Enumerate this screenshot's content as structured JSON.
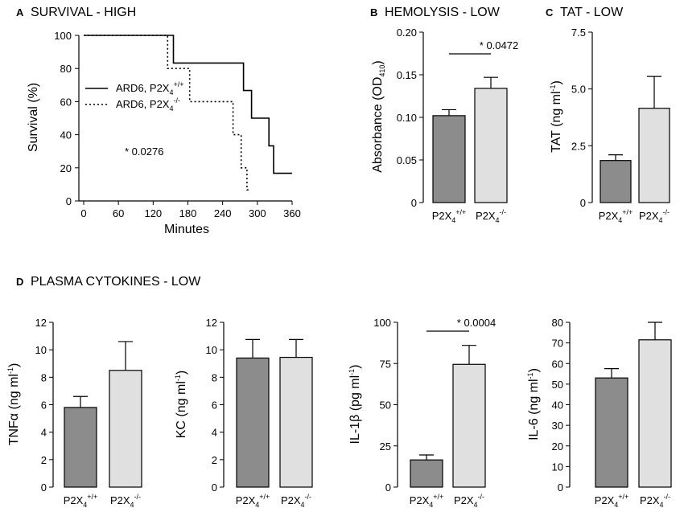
{
  "colors": {
    "wild_type": "#8c8c8c",
    "knockout": "#e0e0e0",
    "ink": "#000000"
  },
  "chart_data": [
    {
      "id": "A",
      "type": "line",
      "panel_letter": "A",
      "title": "SURVIVAL - HIGH",
      "xlabel": "Minutes",
      "ylabel": "Survival (%)",
      "xlim": [
        0,
        360
      ],
      "ylim": [
        0,
        100
      ],
      "xticks": [
        0,
        60,
        120,
        180,
        240,
        300,
        360
      ],
      "yticks": [
        0,
        20,
        40,
        60,
        80,
        100
      ],
      "legend_position": "center-left",
      "annotation": "* 0.0276",
      "series": [
        {
          "name": "ARD6, P2X4+/+",
          "name_base": "ARD6, P2X",
          "name_sub": "4",
          "name_sup": "+/+",
          "style": "solid",
          "x": [
            0,
            155,
            155,
            276,
            276,
            290,
            290,
            320,
            320,
            328,
            328,
            360
          ],
          "y": [
            100,
            100,
            83.3,
            83.3,
            66.7,
            66.7,
            50,
            50,
            33.3,
            33.3,
            16.7,
            16.7
          ]
        },
        {
          "name": "ARD6, P2X4-/-",
          "name_base": "ARD6, P2X",
          "name_sub": "4",
          "name_sup": "-/-",
          "style": "dotted",
          "x": [
            0,
            145,
            145,
            183,
            183,
            258,
            258,
            272,
            272,
            282,
            282,
            285
          ],
          "y": [
            100,
            100,
            80,
            80,
            60,
            60,
            40,
            40,
            20,
            20,
            6.7,
            6.7
          ]
        }
      ]
    },
    {
      "id": "B",
      "type": "bar",
      "panel_letter": "B",
      "title": "HEMOLYSIS - LOW",
      "ylabel": "Absorbance (OD",
      "ylabel_sub": "410",
      "ylabel_end": ")",
      "ylim": [
        0,
        0.2
      ],
      "yticks": [
        0,
        0.05,
        0.1,
        0.15,
        0.2
      ],
      "ytick_labels": [
        "0",
        "0.05",
        "0.10",
        "0.15",
        "0.20"
      ],
      "categories": [
        "P2X4+/+",
        "P2X4-/-"
      ],
      "values": [
        0.102,
        0.134
      ],
      "errors": [
        0.007,
        0.013
      ],
      "significance": "* 0.0472"
    },
    {
      "id": "C",
      "type": "bar",
      "panel_letter": "C",
      "title": "TAT - LOW",
      "ylabel": "TAT (ng ml",
      "ylabel_sup": "-1",
      "ylabel_end": ")",
      "ylim": [
        0,
        7.5
      ],
      "yticks": [
        0,
        2.5,
        5,
        7.5
      ],
      "ytick_labels": [
        "0",
        "2.5",
        "5.0",
        "7.5"
      ],
      "categories": [
        "P2X4+/+",
        "P2X4-/-"
      ],
      "values": [
        1.85,
        4.15
      ],
      "errors": [
        0.25,
        1.4
      ]
    },
    {
      "id": "D1",
      "type": "bar",
      "ylabel": "TNFα (ng ml",
      "ylabel_sup": "-1",
      "ylabel_end": ")",
      "ylim": [
        0,
        12
      ],
      "yticks": [
        0,
        2,
        4,
        6,
        8,
        10,
        12
      ],
      "ytick_labels": [
        "0",
        "2",
        "4",
        "6",
        "8",
        "10",
        "12"
      ],
      "categories": [
        "P2X4+/+",
        "P2X4-/-"
      ],
      "values": [
        5.8,
        8.5
      ],
      "errors": [
        0.8,
        2.1
      ]
    },
    {
      "id": "D2",
      "type": "bar",
      "ylabel": "KC (ng ml",
      "ylabel_sup": "-1",
      "ylabel_end": ")",
      "ylim": [
        0,
        12
      ],
      "yticks": [
        0,
        2,
        4,
        6,
        8,
        10,
        12
      ],
      "ytick_labels": [
        "0",
        "2",
        "4",
        "6",
        "8",
        "10",
        "12"
      ],
      "categories": [
        "P2X4+/+",
        "P2X4-/-"
      ],
      "values": [
        9.4,
        9.45
      ],
      "errors": [
        1.35,
        1.3
      ]
    },
    {
      "id": "D3",
      "type": "bar",
      "ylabel": "IL-1β (pg ml",
      "ylabel_sup": "-1",
      "ylabel_end": ")",
      "ylim": [
        0,
        100
      ],
      "yticks": [
        0,
        25,
        50,
        75,
        100
      ],
      "ytick_labels": [
        "0",
        "25",
        "50",
        "75",
        "100"
      ],
      "categories": [
        "P2X4+/+",
        "P2X4-/-"
      ],
      "values": [
        16.5,
        74.5
      ],
      "errors": [
        3,
        11.5
      ],
      "significance": "* 0.0004"
    },
    {
      "id": "D4",
      "type": "bar",
      "ylabel": "IL-6 (ng ml",
      "ylabel_sup": "-1",
      "ylabel_end": ")",
      "ylim": [
        0,
        80
      ],
      "yticks": [
        0,
        10,
        20,
        30,
        40,
        50,
        60,
        70,
        80
      ],
      "ytick_labels": [
        "0",
        "10",
        "20",
        "30",
        "40",
        "50",
        "60",
        "70",
        "80"
      ],
      "categories": [
        "P2X4+/+",
        "P2X4-/-"
      ],
      "values": [
        53,
        71.5
      ],
      "errors": [
        4.5,
        8.5
      ]
    }
  ],
  "section_d": {
    "letter": "D",
    "title": "PLASMA CYTOKINES - LOW"
  },
  "category_labels": [
    {
      "base": "P2X",
      "sub": "4",
      "sup": "+/+"
    },
    {
      "base": "P2X",
      "sub": "4",
      "sup": "-/-"
    }
  ]
}
